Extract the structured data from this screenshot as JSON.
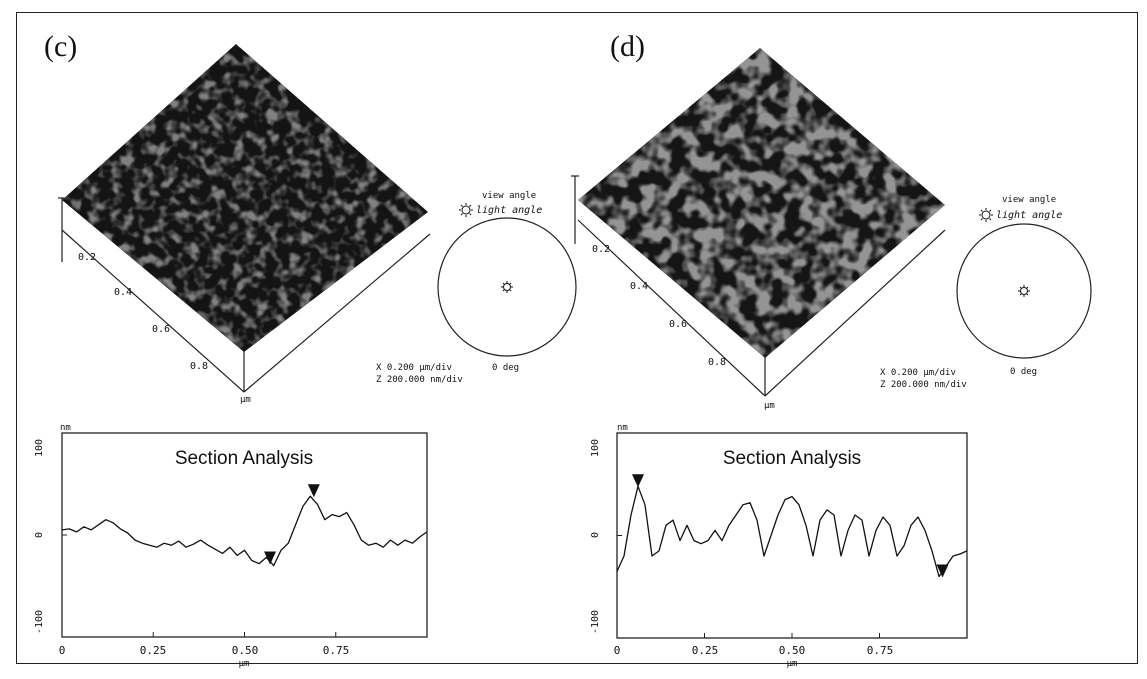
{
  "panels": [
    {
      "label": "(c)",
      "surface_ticks": [
        "0.2",
        "0.4",
        "0.6",
        "0.8"
      ],
      "surface_unit": "μm",
      "scale_x": "X  0.200 μm/div",
      "scale_z": "Z  200.000 nm/div",
      "view_angle": "view angle",
      "light_angle": "light angle",
      "deg_label": "0 deg",
      "section": {
        "title": "Section Analysis",
        "y_unit": "nm",
        "y_ticks": [
          "100",
          "0",
          "-100"
        ],
        "x_ticks": [
          "0",
          "0.25",
          "0.50",
          "0.75"
        ],
        "x_unit": "μm"
      }
    },
    {
      "label": "(d)",
      "surface_ticks": [
        "0.2",
        "0.4",
        "0.6",
        "0.8"
      ],
      "surface_unit": "μm",
      "scale_x": "X  0.200 μm/div",
      "scale_z": "Z  200.000 nm/div",
      "view_angle": "view angle",
      "light_angle": "light angle",
      "deg_label": "0 deg",
      "section": {
        "title": "Section Analysis",
        "y_unit": "nm",
        "y_ticks": [
          "100",
          "0",
          "-100"
        ],
        "x_ticks": [
          "0",
          "0.25",
          "0.50",
          "0.75"
        ],
        "x_unit": "μm"
      }
    }
  ],
  "chart_data": [
    {
      "type": "line",
      "title": "Section Analysis",
      "xlabel": "μm",
      "ylabel": "nm",
      "xlim": [
        0,
        1.0
      ],
      "ylim": [
        -100,
        100
      ],
      "x": [
        0,
        0.02,
        0.04,
        0.06,
        0.08,
        0.1,
        0.12,
        0.14,
        0.16,
        0.18,
        0.2,
        0.22,
        0.24,
        0.26,
        0.28,
        0.3,
        0.32,
        0.34,
        0.36,
        0.38,
        0.4,
        0.42,
        0.44,
        0.46,
        0.48,
        0.5,
        0.52,
        0.54,
        0.56,
        0.58,
        0.6,
        0.62,
        0.64,
        0.66,
        0.68,
        0.7,
        0.72,
        0.74,
        0.76,
        0.78,
        0.8,
        0.82,
        0.84,
        0.86,
        0.88,
        0.9,
        0.92,
        0.94,
        0.96,
        0.98,
        1.0
      ],
      "series": [
        {
          "values": [
            5,
            6,
            3,
            8,
            5,
            10,
            15,
            12,
            6,
            2,
            -5,
            -8,
            -10,
            -12,
            -8,
            -10,
            -6,
            -12,
            -9,
            -5,
            -10,
            -14,
            -18,
            -12,
            -20,
            -15,
            -25,
            -28,
            -22,
            -30,
            -15,
            -8,
            10,
            28,
            38,
            30,
            15,
            20,
            18,
            22,
            10,
            -5,
            -10,
            -8,
            -12,
            -5,
            -10,
            -5,
            -8,
            -2,
            3
          ]
        }
      ],
      "markers": [
        {
          "x": 0.57,
          "y": -28
        },
        {
          "x": 0.69,
          "y": 38
        }
      ]
    },
    {
      "type": "line",
      "title": "Section Analysis",
      "xlabel": "μm",
      "ylabel": "nm",
      "xlim": [
        0,
        1.0
      ],
      "ylim": [
        -100,
        100
      ],
      "x": [
        0,
        0.02,
        0.04,
        0.06,
        0.08,
        0.1,
        0.12,
        0.14,
        0.16,
        0.18,
        0.2,
        0.22,
        0.24,
        0.26,
        0.28,
        0.3,
        0.32,
        0.34,
        0.36,
        0.38,
        0.4,
        0.42,
        0.44,
        0.46,
        0.48,
        0.5,
        0.52,
        0.54,
        0.56,
        0.58,
        0.6,
        0.62,
        0.64,
        0.66,
        0.68,
        0.7,
        0.72,
        0.74,
        0.76,
        0.78,
        0.8,
        0.82,
        0.84,
        0.86,
        0.88,
        0.9,
        0.92,
        0.94,
        0.96,
        0.98,
        1.0
      ],
      "series": [
        {
          "values": [
            -35,
            -20,
            20,
            48,
            30,
            -20,
            -15,
            10,
            15,
            -5,
            10,
            -5,
            -8,
            -5,
            5,
            -5,
            10,
            20,
            30,
            32,
            15,
            -20,
            0,
            20,
            35,
            38,
            30,
            10,
            -20,
            15,
            25,
            20,
            -20,
            5,
            20,
            15,
            -20,
            5,
            18,
            10,
            -20,
            -10,
            10,
            18,
            5,
            -15,
            -40,
            -30,
            -20,
            -18,
            -15
          ]
        }
      ],
      "markers": [
        {
          "x": 0.06,
          "y": 48
        },
        {
          "x": 0.93,
          "y": -40
        }
      ]
    }
  ]
}
